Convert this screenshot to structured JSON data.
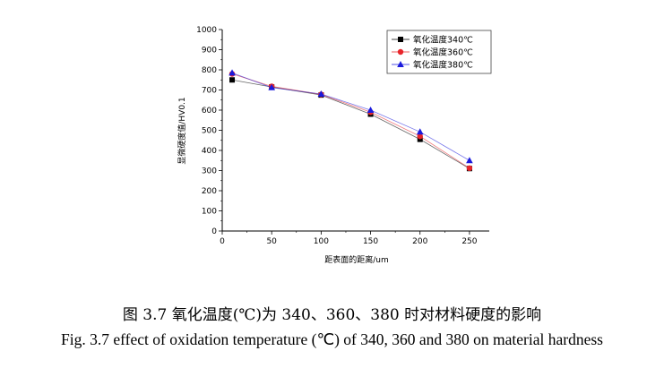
{
  "chart_data": {
    "type": "line",
    "title": "",
    "xlabel": "距表面的距离/um",
    "ylabel": "显微硬度值/HV0.1",
    "x": [
      10,
      50,
      100,
      150,
      200,
      250
    ],
    "xlim": [
      0,
      270
    ],
    "ylim": [
      0,
      1000
    ],
    "xticks": [
      0,
      50,
      100,
      150,
      200,
      250
    ],
    "yticks": [
      0,
      100,
      200,
      300,
      400,
      500,
      600,
      700,
      800,
      900,
      1000
    ],
    "grid": false,
    "legend_position": "top-right",
    "series": [
      {
        "name": "氧化温度340℃",
        "color": "#000000",
        "marker": "square",
        "values": [
          750,
          715,
          675,
          580,
          455,
          310
        ]
      },
      {
        "name": "氧化温度360℃",
        "color": "#e8252a",
        "marker": "circle",
        "values": [
          780,
          718,
          678,
          590,
          470,
          312
        ]
      },
      {
        "name": "氧化温度380℃",
        "color": "#1a1adc",
        "marker": "triangle",
        "values": [
          785,
          712,
          680,
          600,
          492,
          350
        ]
      }
    ]
  },
  "captions": {
    "chinese": "图 3.7  氧化温度(℃)为 340、360、380 时对材料硬度的影响",
    "english": "Fig. 3.7 effect of oxidation temperature (℃) of 340, 360 and 380 on material hardness"
  }
}
